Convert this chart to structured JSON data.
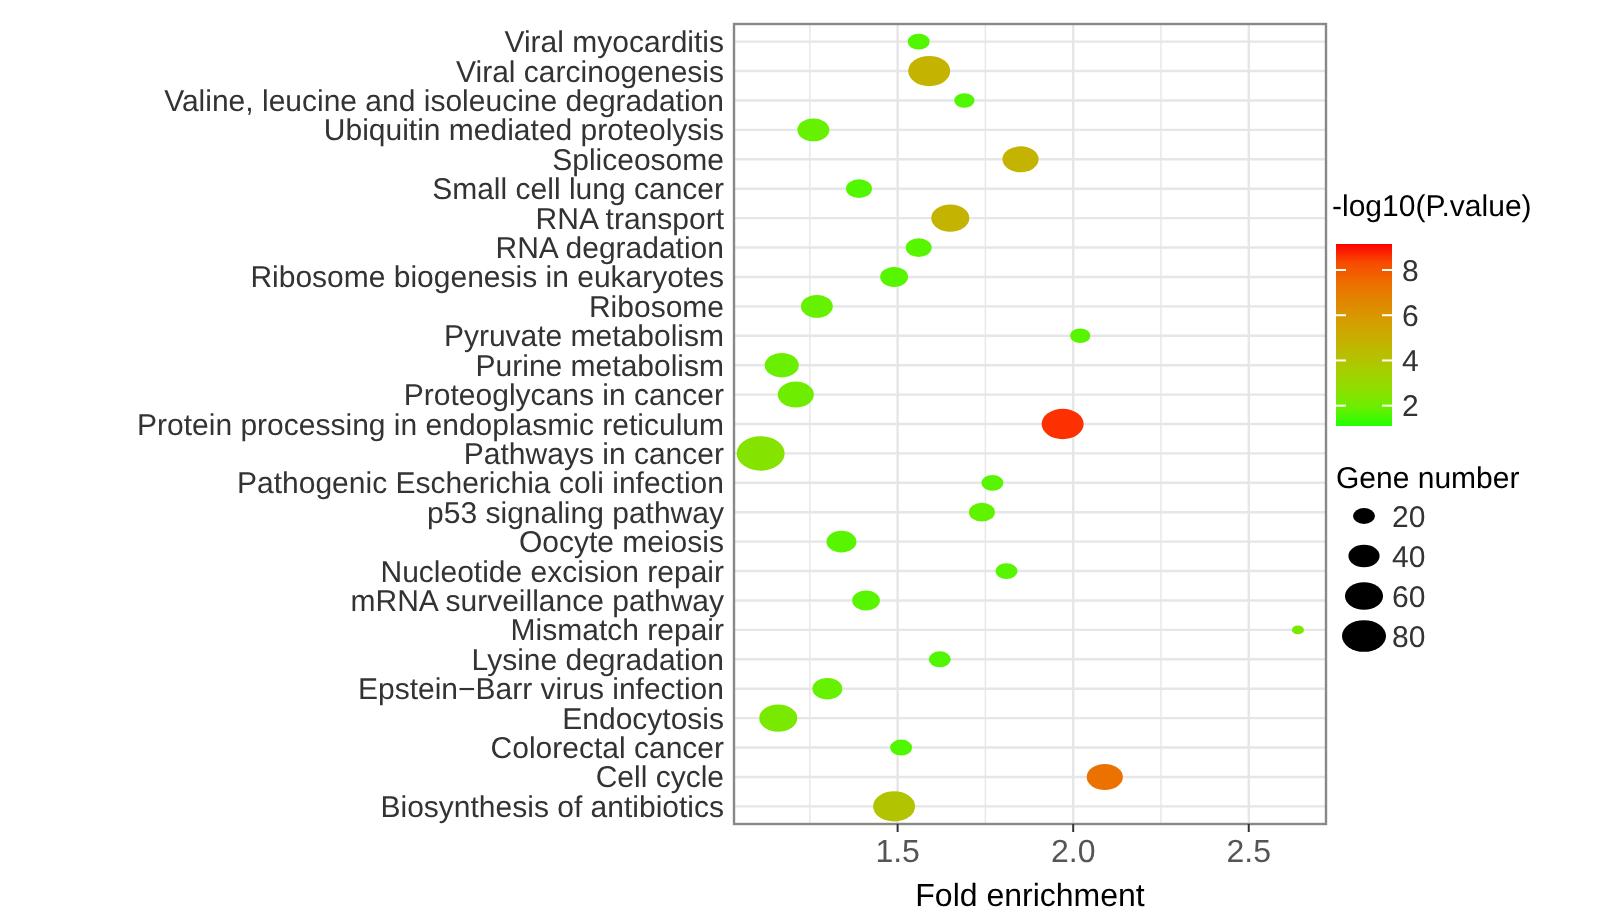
{
  "chart_data": {
    "type": "bubble",
    "orientation": "horizontal",
    "xlabel": "Fold enrichment",
    "clabel": "-log10(P.value)",
    "legend_title": "Gene number",
    "grid": true,
    "categories": [
      "Viral myocarditis",
      "Viral carcinogenesis",
      "Valine, leucine and isoleucine degradation",
      "Ubiquitin mediated proteolysis",
      "Spliceosome",
      "Small cell lung cancer",
      "RNA transport",
      "RNA degradation",
      "Ribosome biogenesis in eukaryotes",
      "Ribosome",
      "Pyruvate metabolism",
      "Purine metabolism",
      "Proteoglycans in cancer",
      "Protein processing in endoplasmic reticulum",
      "Pathways in cancer",
      "Pathogenic Escherichia coli infection",
      "p53 signaling pathway",
      "Oocyte meiosis",
      "Nucleotide excision repair",
      "mRNA surveillance pathway",
      "Mismatch repair",
      "Lysine degradation",
      "Epstein−Barr virus infection",
      "Endocytosis",
      "Colorectal cancer",
      "Cell cycle",
      "Biosynthesis of antibiotics"
    ],
    "values": [
      1.56,
      1.59,
      1.69,
      1.26,
      1.85,
      1.39,
      1.65,
      1.56,
      1.49,
      1.27,
      2.02,
      1.17,
      1.21,
      1.97,
      1.11,
      1.77,
      1.74,
      1.34,
      1.81,
      1.41,
      2.64,
      1.62,
      1.3,
      1.16,
      1.51,
      2.09,
      1.49
    ],
    "sizes": [
      20,
      73,
      17,
      42,
      54,
      28,
      60,
      28,
      32,
      42,
      17,
      48,
      54,
      73,
      95,
      20,
      28,
      37,
      20,
      32,
      6,
      20,
      37,
      60,
      20,
      54,
      73
    ],
    "cvalues": [
      1.5,
      4.8,
      1.5,
      1.8,
      4.8,
      1.5,
      4.8,
      1.6,
      1.6,
      1.8,
      1.6,
      1.9,
      2.0,
      8.8,
      2.5,
      1.6,
      1.7,
      1.6,
      1.6,
      1.6,
      2.2,
      1.5,
      1.8,
      2.2,
      1.5,
      7.3,
      4.0
    ],
    "size_legend": [
      20,
      40,
      60,
      80
    ],
    "xlim": [
      1.034,
      2.72
    ],
    "xticks": [
      {
        "value": 1.25,
        "label": null
      },
      {
        "value": 1.5,
        "label": "1.5"
      },
      {
        "value": 1.75,
        "label": null
      },
      {
        "value": 2.0,
        "label": "2.0"
      },
      {
        "value": 2.25,
        "label": null
      },
      {
        "value": 2.5,
        "label": "2.5"
      }
    ],
    "clim": [
      1.1,
      9.15
    ],
    "cticks": [
      2,
      4,
      6,
      8
    ]
  }
}
